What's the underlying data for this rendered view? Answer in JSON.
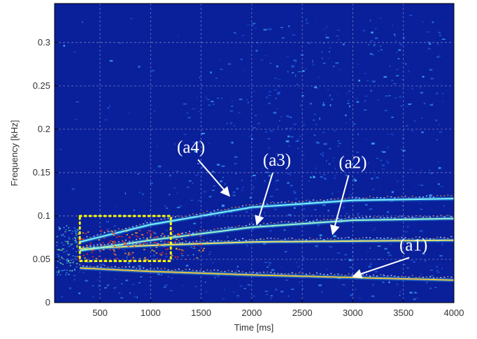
{
  "chart_data": {
    "type": "heatmap",
    "title": "",
    "xlabel": "Time [ms]",
    "ylabel": "Frequency [kHz]",
    "xlim": [
      50,
      4000
    ],
    "ylim": [
      0,
      0.345
    ],
    "xticks": [
      500,
      1000,
      1500,
      2000,
      2500,
      3000,
      3500,
      4000
    ],
    "yticks": [
      0,
      0.05,
      0.1,
      0.15,
      0.2,
      0.25,
      0.3
    ],
    "grid": true,
    "colormap": "jet",
    "background_color": "#0a1f9a",
    "ridges": [
      {
        "label": "(a1)",
        "x": [
          300,
          1000,
          2000,
          3000,
          4000
        ],
        "y": [
          0.04,
          0.036,
          0.032,
          0.029,
          0.026
        ]
      },
      {
        "label": "(a2)",
        "x": [
          300,
          1000,
          2000,
          3000,
          4000
        ],
        "y": [
          0.062,
          0.066,
          0.07,
          0.071,
          0.072
        ]
      },
      {
        "label": "(a3)",
        "x": [
          300,
          1000,
          2000,
          3000,
          4000
        ],
        "y": [
          0.06,
          0.072,
          0.087,
          0.095,
          0.097
        ]
      },
      {
        "label": "(a4)",
        "x": [
          300,
          1000,
          2000,
          3000,
          4000
        ],
        "y": [
          0.07,
          0.09,
          0.11,
          0.118,
          0.12
        ]
      }
    ],
    "annotations": [
      {
        "text": "(a1)",
        "label_at": [
          3600,
          0.06
        ],
        "arrow_to": [
          3000,
          0.03
        ]
      },
      {
        "text": "(a2)",
        "label_at": [
          3000,
          0.155
        ],
        "arrow_to": [
          2800,
          0.079
        ]
      },
      {
        "text": "(a3)",
        "label_at": [
          2250,
          0.158
        ],
        "arrow_to": [
          2050,
          0.09
        ]
      },
      {
        "text": "(a4)",
        "label_at": [
          1400,
          0.173
        ],
        "arrow_to": [
          1780,
          0.123
        ]
      }
    ],
    "highlight_box": {
      "x": [
        300,
        1200
      ],
      "y": [
        0.048,
        0.1
      ],
      "color": "#ffff00",
      "style": "dotted"
    }
  }
}
